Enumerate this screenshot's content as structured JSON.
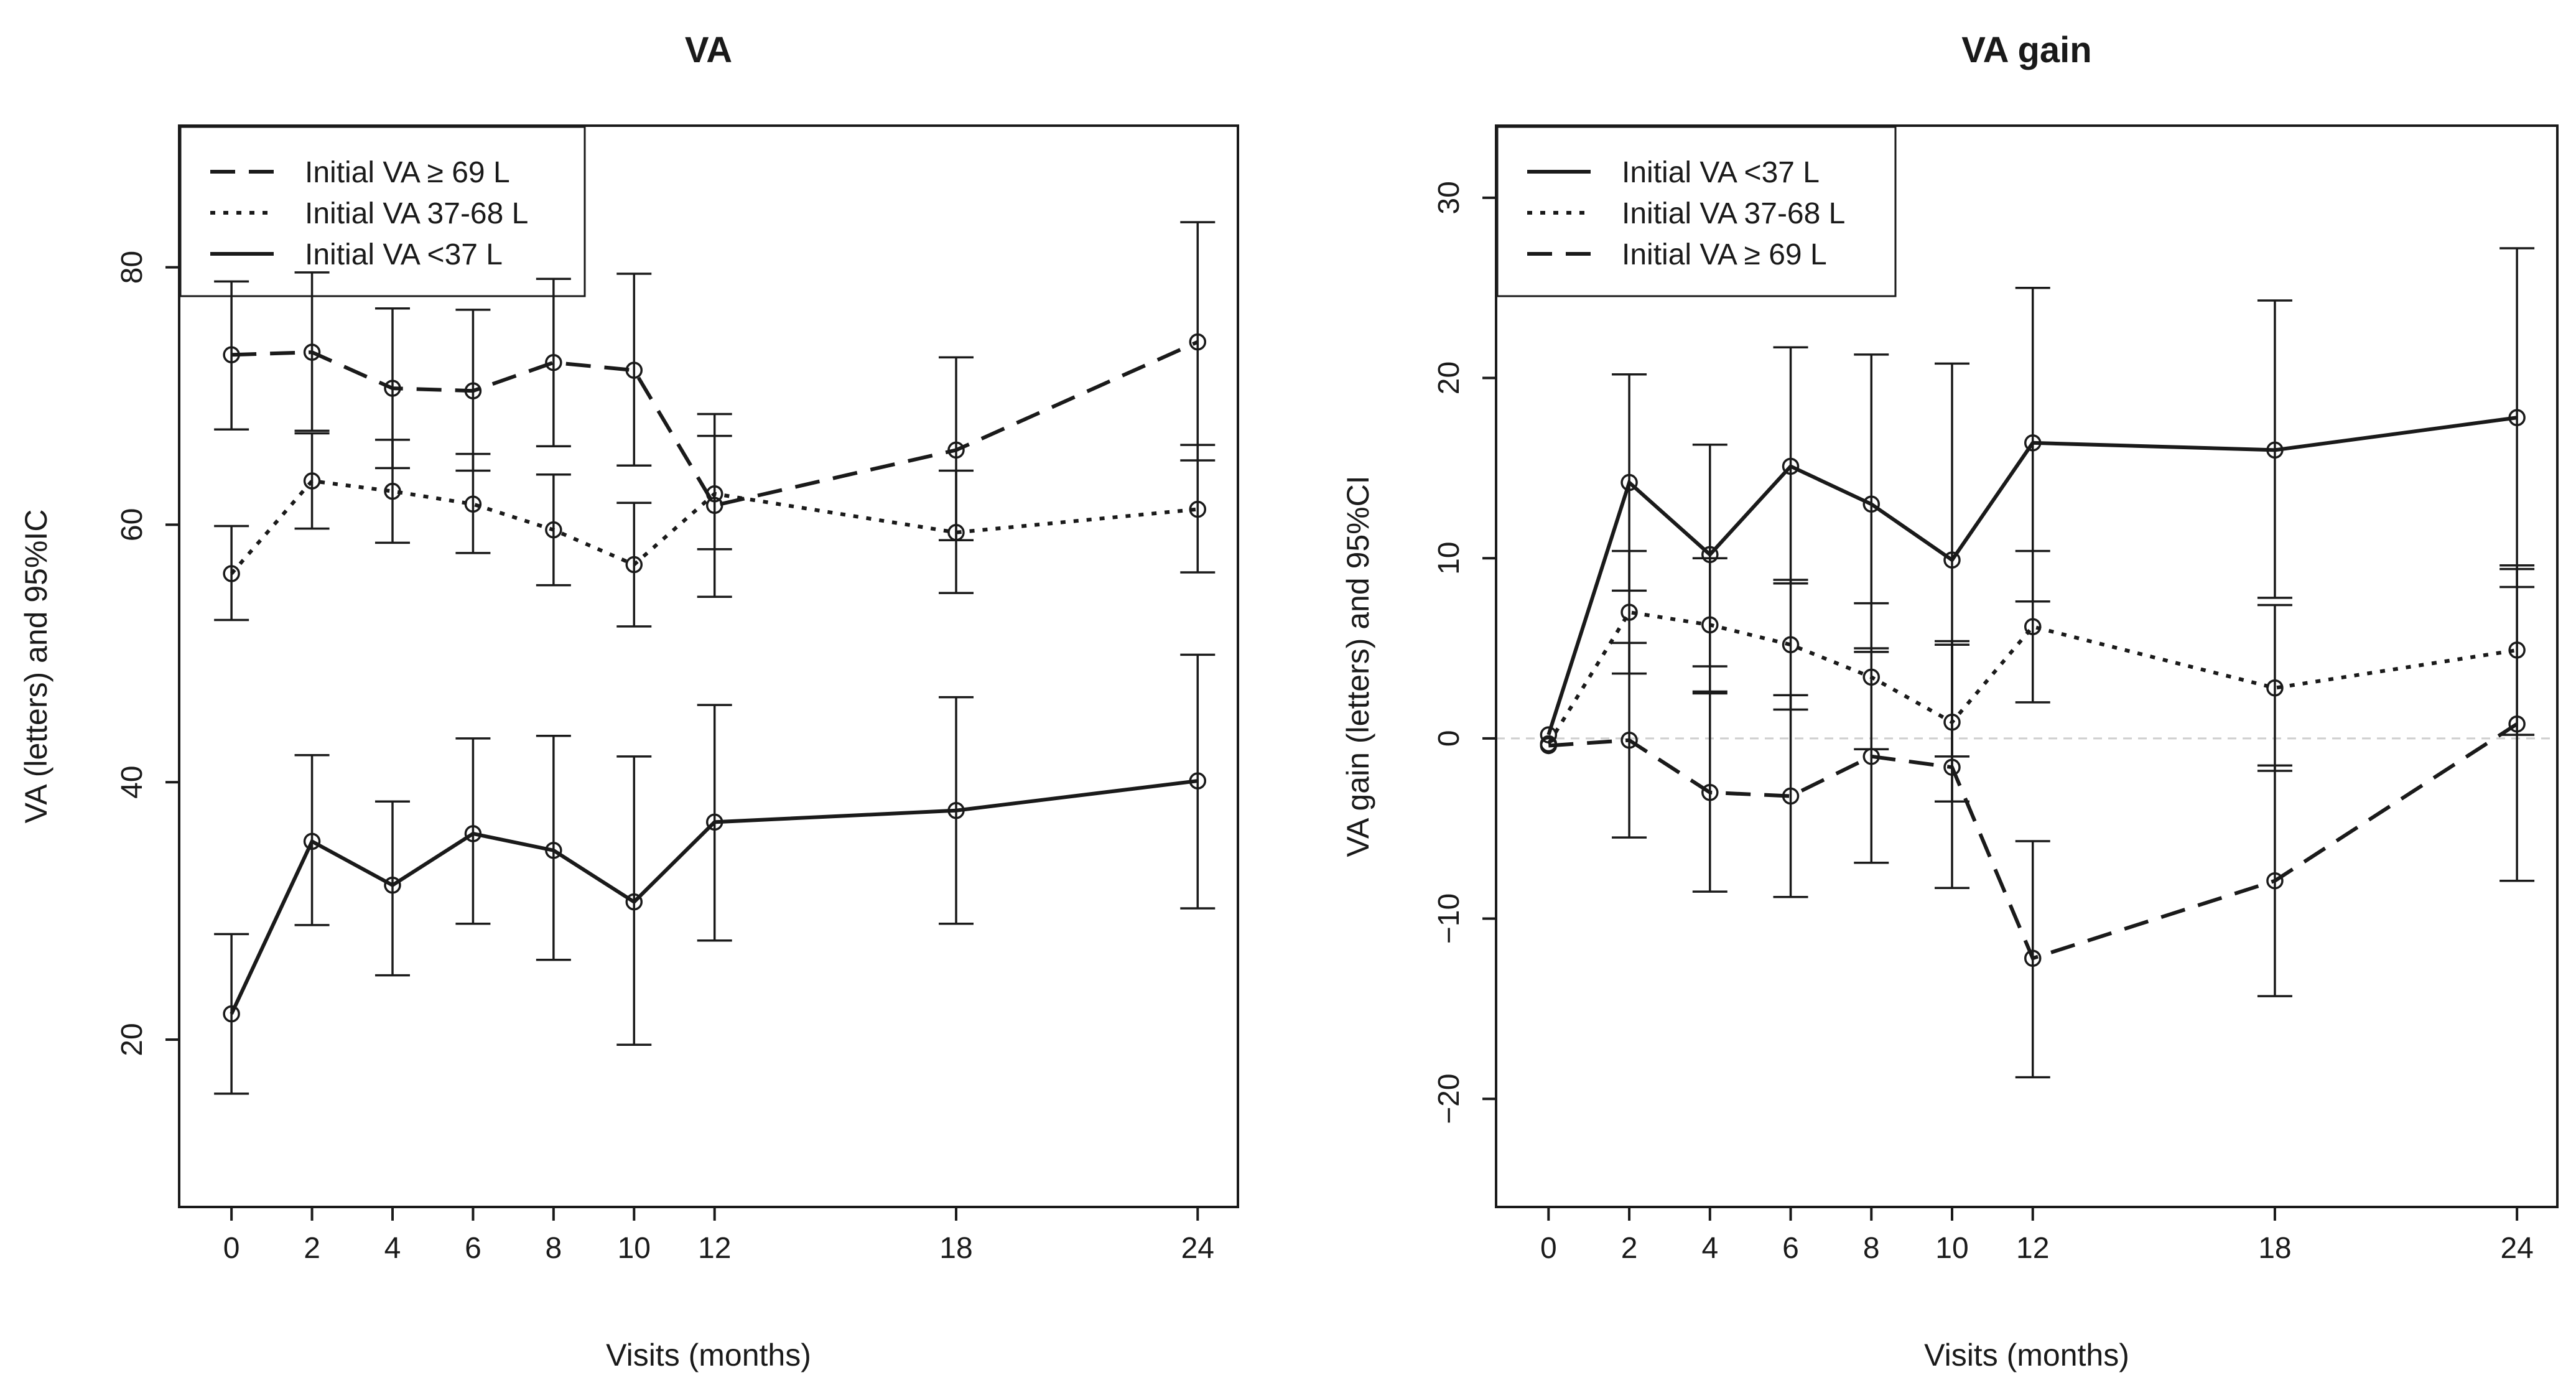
{
  "chart_data": [
    {
      "type": "line",
      "title": "VA",
      "xlabel": "Visits (months)",
      "ylabel": "VA (letters) and 95%IC",
      "x_ticks": [
        0,
        2,
        4,
        6,
        8,
        10,
        12,
        18,
        24
      ],
      "y_ticks": [
        20,
        40,
        60,
        80
      ],
      "xlim": [
        -1.3,
        25.0
      ],
      "ylim": [
        7,
        91
      ],
      "legend_position": "top-left",
      "legend": [
        {
          "label": "Initial VA ≥ 69 L",
          "dash": "dashed"
        },
        {
          "label": "Initial VA 37-68 L",
          "dash": "dotted"
        },
        {
          "label": "Initial VA <37 L",
          "dash": "solid"
        }
      ],
      "series": [
        {
          "dash": "dashed",
          "x": [
            0,
            2,
            4,
            6,
            8,
            10,
            12,
            18,
            24
          ],
          "y": [
            73.2,
            73.4,
            70.6,
            70.4,
            72.6,
            72.0,
            61.5,
            65.8,
            74.2
          ],
          "lower": [
            67.4,
            67.3,
            64.4,
            64.2,
            66.1,
            64.6,
            54.4,
            58.8,
            65.0
          ],
          "upper": [
            78.9,
            79.6,
            76.8,
            76.7,
            79.1,
            79.5,
            68.6,
            73.0,
            83.5
          ]
        },
        {
          "dash": "dotted",
          "x": [
            0,
            2,
            4,
            6,
            8,
            10,
            12,
            18,
            24
          ],
          "y": [
            56.2,
            63.4,
            62.6,
            61.6,
            59.6,
            56.9,
            62.4,
            59.4,
            61.2
          ],
          "lower": [
            52.6,
            59.7,
            58.6,
            57.8,
            55.3,
            52.1,
            58.1,
            54.7,
            56.3
          ],
          "upper": [
            59.9,
            67.1,
            66.6,
            65.5,
            63.9,
            61.7,
            66.9,
            64.2,
            66.2
          ]
        },
        {
          "dash": "solid",
          "x": [
            0,
            2,
            4,
            6,
            8,
            10,
            12,
            18,
            24
          ],
          "y": [
            22.0,
            35.4,
            32.0,
            36.0,
            34.7,
            30.7,
            36.9,
            37.8,
            40.1
          ],
          "lower": [
            15.8,
            28.9,
            25.0,
            29.0,
            26.2,
            19.6,
            27.7,
            29.0,
            30.2
          ],
          "upper": [
            28.2,
            42.1,
            38.5,
            43.4,
            43.6,
            42.0,
            46.0,
            46.6,
            49.9
          ]
        }
      ]
    },
    {
      "type": "line",
      "title": "VA gain",
      "xlabel": "Visits (months)",
      "ylabel": "VA gain (letters) and 95%CI",
      "x_ticks": [
        0,
        2,
        4,
        6,
        8,
        10,
        12,
        18,
        24
      ],
      "y_ticks": [
        -20,
        -10,
        0,
        10,
        20,
        30
      ],
      "xlim": [
        -1.3,
        25.0
      ],
      "ylim": [
        -26,
        34
      ],
      "zero_line": true,
      "legend_position": "top-left",
      "legend": [
        {
          "label": "Initial VA <37 L",
          "dash": "solid"
        },
        {
          "label": "Initial VA 37-68 L",
          "dash": "dotted"
        },
        {
          "label": "Initial VA ≥ 69 L",
          "dash": "dashed"
        }
      ],
      "series": [
        {
          "dash": "solid",
          "x": [
            0,
            2,
            4,
            6,
            8,
            10,
            12,
            18,
            24
          ],
          "y": [
            0.2,
            14.2,
            10.2,
            15.1,
            13.0,
            9.9,
            16.4,
            16.0,
            17.8
          ],
          "lower": [
            null,
            8.2,
            4.0,
            8.6,
            4.8,
            -1.0,
            7.6,
            7.8,
            8.4
          ],
          "upper": [
            null,
            20.2,
            16.3,
            21.7,
            21.3,
            20.8,
            25.0,
            24.3,
            27.2
          ]
        },
        {
          "dash": "dotted",
          "x": [
            0,
            2,
            4,
            6,
            8,
            10,
            12,
            18,
            24
          ],
          "y": [
            -0.3,
            7.0,
            6.3,
            5.2,
            3.4,
            0.9,
            6.2,
            2.8,
            4.9
          ],
          "lower": [
            null,
            3.6,
            2.6,
            1.6,
            -0.6,
            -3.5,
            2.0,
            -1.8,
            0.2
          ],
          "upper": [
            null,
            10.4,
            10.0,
            8.8,
            7.5,
            5.4,
            10.4,
            7.4,
            9.6
          ]
        },
        {
          "dash": "dashed",
          "x": [
            0,
            2,
            4,
            6,
            8,
            10,
            12,
            18,
            24
          ],
          "y": [
            -0.4,
            -0.1,
            -3.0,
            -3.2,
            -1.0,
            -1.6,
            -12.2,
            -7.9,
            0.8
          ],
          "lower": [
            null,
            -5.5,
            -8.5,
            -8.8,
            -6.9,
            -8.3,
            -18.8,
            -14.3,
            -7.9
          ],
          "upper": [
            null,
            5.3,
            2.5,
            2.4,
            5.0,
            5.2,
            -5.7,
            -1.5,
            9.4
          ]
        }
      ]
    }
  ]
}
